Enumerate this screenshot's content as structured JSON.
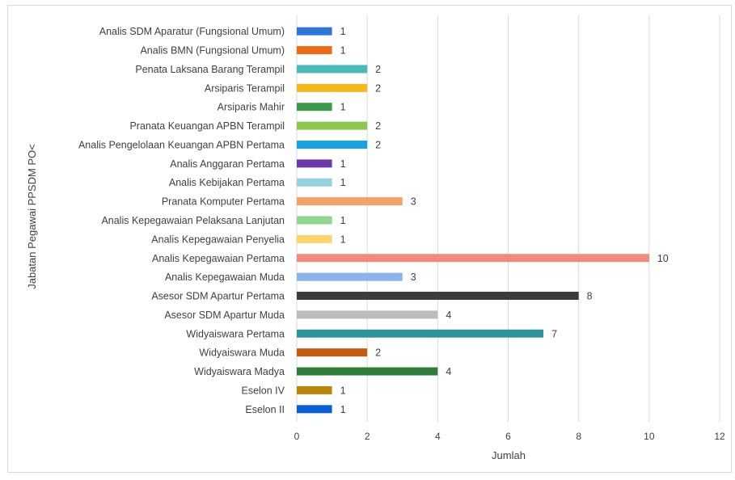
{
  "chart_data": {
    "type": "bar",
    "orientation": "horizontal",
    "xlabel": "Jumlah",
    "ylabel": "Jabatan Pegawai PPSDM PO<",
    "xlim": [
      0,
      12
    ],
    "xticks": [
      "0",
      "2",
      "4",
      "6",
      "8",
      "10",
      "12"
    ],
    "grid": true,
    "legend": "none",
    "categories": [
      "Analis SDM Aparatur (Fungsional Umum)",
      "Analis BMN (Fungsional Umum)",
      "Penata Laksana Barang Terampil",
      "Arsiparis Terampil",
      "Arsiparis Mahir",
      "Pranata Keuangan APBN Terampil",
      "Analis Pengelolaan Keuangan APBN Pertama",
      "Analis Anggaran Pertama",
      "Analis Kebijakan Pertama",
      "Pranata Komputer Pertama",
      "Analis Kepegawaian Pelaksana Lanjutan",
      "Analis Kepegawaian Penyelia",
      "Analis Kepegawaian Pertama",
      "Analis Kepegawaian Muda",
      "Asesor SDM Apartur Pertama",
      "Asesor SDM Apartur Muda",
      "Widyaiswara Pertama",
      "Widyaiswara Muda",
      "Widyaiswara Madya",
      "Eselon IV",
      "Eselon II"
    ],
    "values": [
      1,
      1,
      2,
      2,
      1,
      2,
      2,
      1,
      1,
      3,
      1,
      1,
      10,
      3,
      8,
      4,
      7,
      2,
      4,
      1,
      1
    ],
    "value_labels": [
      "1",
      "1",
      "2",
      "2",
      "1",
      "2",
      "2",
      "1",
      "1",
      "3",
      "1",
      "1",
      "10",
      "3",
      "8",
      "4",
      "7",
      "2",
      "4",
      "1",
      "1"
    ],
    "colors": [
      "#2e75d6",
      "#f06a16",
      "#4bb8b8",
      "#f4b81b",
      "#3a9a4a",
      "#8dc74d",
      "#1aa1e0",
      "#6b3aa8",
      "#93d2dc",
      "#f5a26a",
      "#8fd68e",
      "#fcd46b",
      "#f08a7c",
      "#8db3ec",
      "#3b3b3b",
      "#bcbcbc",
      "#30959b",
      "#c55a11",
      "#2f7d3a",
      "#b8860b",
      "#0a5fd6"
    ]
  }
}
